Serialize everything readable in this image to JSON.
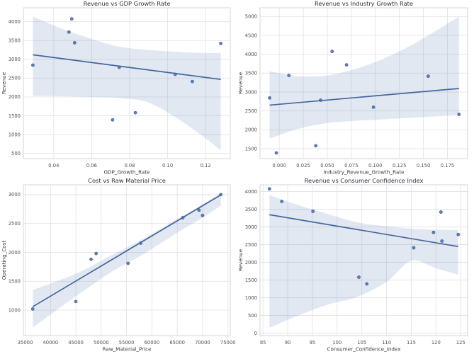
{
  "figure": {
    "background": "#ffffff",
    "grid": true,
    "legend": "none"
  },
  "colors": {
    "point": "#4c72b0",
    "point_edge": "#35518a",
    "line": "#44659c",
    "band": "#4c72b0",
    "band_opacity": 0.16,
    "grid": "#e3e4e8",
    "spine": "#d3d6dd",
    "plot_bg": "#ffffff"
  },
  "chart_data": [
    {
      "type": "scatter",
      "title": "Revenue vs GDP Growth Rate",
      "xlabel": "GDP_Growth_Rate",
      "ylabel": "Revenue",
      "xlim": [
        0.024,
        0.133
      ],
      "ylim": [
        360,
        4370
      ],
      "xticks": [
        0.04,
        0.06,
        0.08,
        0.1,
        0.12
      ],
      "xtick_labels": [
        "0.04",
        "0.06",
        "0.08",
        "0.10",
        "0.12"
      ],
      "yticks": [
        500,
        1000,
        1500,
        2000,
        2500,
        3000,
        3500,
        4000
      ],
      "ytick_labels": [
        "500",
        "1000",
        "1500",
        "2000",
        "2500",
        "3000",
        "3500",
        "4000"
      ],
      "points": [
        [
          0.029,
          2845
        ],
        [
          0.048,
          3725
        ],
        [
          0.0495,
          4075
        ],
        [
          0.051,
          3440
        ],
        [
          0.071,
          1390
        ],
        [
          0.0745,
          2785
        ],
        [
          0.083,
          1580
        ],
        [
          0.104,
          2600
        ],
        [
          0.113,
          2410
        ],
        [
          0.128,
          3420
        ]
      ],
      "regression": {
        "x": [
          0.029,
          0.128
        ],
        "y": [
          3120,
          2465
        ]
      },
      "ci_band": {
        "x": [
          0.029,
          0.045,
          0.06,
          0.075,
          0.09,
          0.105,
          0.12,
          0.128
        ],
        "upper": [
          4140,
          3800,
          3540,
          3330,
          3250,
          3200,
          3170,
          3165
        ],
        "lower": [
          2030,
          2015,
          2000,
          1970,
          1850,
          1430,
          900,
          580
        ]
      }
    },
    {
      "type": "scatter",
      "title": "Revenue vs Industry Growth Rate",
      "xlabel": "Industry_Revenue_Growth_Rate",
      "ylabel": "Revenue",
      "xlim": [
        -0.02,
        0.196
      ],
      "ylim": [
        1240,
        5230
      ],
      "xticks": [
        0.0,
        0.025,
        0.05,
        0.075,
        0.1,
        0.125,
        0.15,
        0.175
      ],
      "xtick_labels": [
        "0.000",
        "0.025",
        "0.050",
        "0.075",
        "0.100",
        "0.125",
        "0.150",
        "0.175"
      ],
      "yticks": [
        1500,
        2000,
        2500,
        3000,
        3500,
        4000,
        4500,
        5000
      ],
      "ytick_labels": [
        "1500",
        "2000",
        "2500",
        "3000",
        "3500",
        "4000",
        "4500",
        "5000"
      ],
      "points": [
        [
          -0.01,
          2845
        ],
        [
          -0.003,
          1390
        ],
        [
          0.01,
          3440
        ],
        [
          0.038,
          1580
        ],
        [
          0.043,
          2785
        ],
        [
          0.055,
          4075
        ],
        [
          0.07,
          3720
        ],
        [
          0.098,
          2600
        ],
        [
          0.155,
          3420
        ],
        [
          0.187,
          2410
        ]
      ],
      "regression": {
        "x": [
          -0.01,
          0.187
        ],
        "y": [
          2655,
          3095
        ]
      },
      "ci_band": {
        "x": [
          -0.01,
          0.02,
          0.05,
          0.08,
          0.11,
          0.145,
          0.187
        ],
        "upper": [
          3550,
          3420,
          3440,
          3620,
          3900,
          4350,
          5000
        ],
        "lower": [
          1770,
          2030,
          2180,
          2240,
          2280,
          2330,
          2390
        ]
      }
    },
    {
      "type": "scatter",
      "title": "Cost vs Raw Material Price",
      "xlabel": "Raw_Material_Price",
      "ylabel": "Operating_Cost",
      "xlim": [
        34650,
        75460
      ],
      "ylim": [
        560,
        3170
      ],
      "xticks": [
        35000,
        40000,
        45000,
        50000,
        55000,
        60000,
        65000,
        70000,
        75000
      ],
      "xtick_labels": [
        "35000",
        "40000",
        "45000",
        "50000",
        "55000",
        "60000",
        "65000",
        "70000",
        "75000"
      ],
      "yticks": [
        1000,
        1500,
        2000,
        2500,
        3000
      ],
      "ytick_labels": [
        "1000",
        "1500",
        "2000",
        "2500",
        "3000"
      ],
      "points": [
        [
          36500,
          1020
        ],
        [
          45000,
          1150
        ],
        [
          48000,
          1880
        ],
        [
          49000,
          1980
        ],
        [
          55300,
          1810
        ],
        [
          57800,
          2160
        ],
        [
          66100,
          2600
        ],
        [
          69300,
          2730
        ],
        [
          70000,
          2640
        ],
        [
          73600,
          3000
        ]
      ],
      "regression": {
        "x": [
          36500,
          73600
        ],
        "y": [
          1060,
          2995
        ]
      },
      "ci_band": {
        "x": [
          36500,
          45000,
          52000,
          58000,
          65000,
          70000,
          73600
        ],
        "upper": [
          1350,
          1630,
          1950,
          2220,
          2580,
          2830,
          3020
        ],
        "lower": [
          700,
          1240,
          1660,
          1950,
          2340,
          2600,
          2810
        ]
      }
    },
    {
      "type": "scatter",
      "title": "Revenue vs Consumer Confidence Index",
      "xlabel": "Consumer_Confidence_Index",
      "ylabel": "Revenue",
      "xlim": [
        84.4,
        126.4
      ],
      "ylim": [
        -70,
        4190
      ],
      "xticks": [
        85,
        90,
        95,
        100,
        105,
        110,
        115,
        120,
        125
      ],
      "xtick_labels": [
        "85",
        "90",
        "95",
        "100",
        "105",
        "110",
        "115",
        "120",
        "125"
      ],
      "yticks": [
        0,
        500,
        1000,
        1500,
        2000,
        2500,
        3000,
        3500,
        4000
      ],
      "ytick_labels": [
        "0",
        "500",
        "1000",
        "1500",
        "2000",
        "2500",
        "3000",
        "3500",
        "4000"
      ],
      "points": [
        [
          86.3,
          4075
        ],
        [
          88.8,
          3720
        ],
        [
          95.1,
          3440
        ],
        [
          104.4,
          1580
        ],
        [
          106.0,
          1390
        ],
        [
          115.5,
          2410
        ],
        [
          119.5,
          2845
        ],
        [
          121.0,
          3420
        ],
        [
          121.2,
          2600
        ],
        [
          124.5,
          2785
        ]
      ],
      "regression": {
        "x": [
          86.3,
          124.5
        ],
        "y": [
          3345,
          2445
        ]
      },
      "ci_band": {
        "x": [
          86.3,
          92,
          98,
          104,
          110,
          115,
          120,
          124.5
        ],
        "upper": [
          3900,
          3620,
          3370,
          3130,
          3020,
          2950,
          2920,
          2910
        ],
        "lower": [
          150,
          490,
          800,
          1020,
          1450,
          2040,
          1830,
          1650
        ]
      }
    }
  ]
}
